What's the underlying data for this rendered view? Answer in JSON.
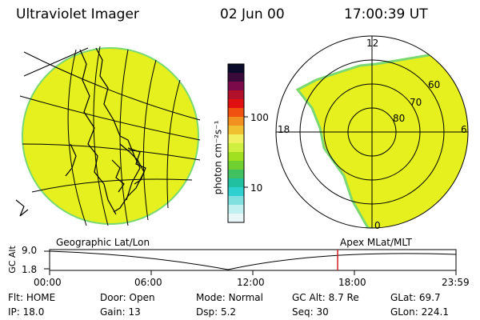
{
  "header": {
    "title": "Ultraviolet Imager",
    "date": "02 Jun 00",
    "time": "17:00:39 UT"
  },
  "colorbar": {
    "unit_label": "photon cm⁻²s⁻¹",
    "ticks": [
      "100",
      "10"
    ],
    "colors": [
      "#0a0a2a",
      "#3a0a3a",
      "#7a0a4a",
      "#b0102a",
      "#e01010",
      "#f05010",
      "#f09020",
      "#f0c030",
      "#f0f060",
      "#d0f040",
      "#a0e020",
      "#70d030",
      "#40c060",
      "#20c0a0",
      "#30d0d0",
      "#80e0e0",
      "#c0f0f0",
      "#e8f8f8"
    ]
  },
  "polar_plot": {
    "labels": {
      "top": "12",
      "left": "18",
      "right": "6",
      "bottom": "0"
    },
    "lat_labels": [
      "60",
      "70",
      "80"
    ]
  },
  "timeline": {
    "left_title": "Geographic Lat/Lon",
    "right_title": "Apex MLat/MLT",
    "y_axis_label": "GC Alt",
    "y_ticks": [
      "9.0",
      "1.8"
    ],
    "x_ticks": [
      "00:00",
      "06:00",
      "12:00",
      "18:00",
      "23:59"
    ],
    "current_marker_hour": 17.01
  },
  "status": {
    "row1": [
      {
        "label": "Flt:",
        "value": "HOME"
      },
      {
        "label": "Door:",
        "value": "Open"
      },
      {
        "label": "Mode:",
        "value": "Normal"
      },
      {
        "label": "GC Alt:",
        "value": "8.7 Re"
      },
      {
        "label": "GLat:",
        "value": "69.7"
      }
    ],
    "row2": [
      {
        "label": "IP:",
        "value": "18.0"
      },
      {
        "label": "Gain:",
        "value": "13"
      },
      {
        "label": "Dsp:",
        "value": "5.2"
      },
      {
        "label": "Seq:",
        "value": "30"
      },
      {
        "label": "GLon:",
        "value": "224.1"
      }
    ]
  },
  "colors": {
    "fill": "#e6f01e",
    "edge": "#7ad872",
    "marker": "#d02020"
  }
}
